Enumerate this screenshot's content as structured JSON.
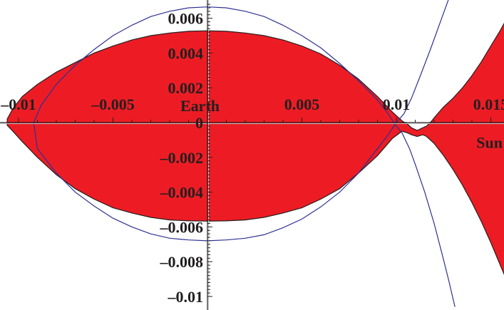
{
  "chart_data": {
    "type": "area",
    "title": "",
    "xlabel": "",
    "ylabel": "",
    "xlim": [
      -0.0106,
      0.0162
    ],
    "ylim": [
      -0.0107,
      0.007
    ],
    "grid": false,
    "x_ticks": [
      -0.01,
      -0.005,
      0.005,
      0.01,
      0.015
    ],
    "x_tick_labels": [
      "–0.01",
      "–0.005",
      "0.005",
      "0.01",
      "0.015"
    ],
    "y_ticks": [
      0.006,
      0.004,
      0.002,
      0,
      -0.002,
      -0.004,
      -0.006,
      -0.008,
      -0.01
    ],
    "y_tick_labels": [
      "0.006",
      "0.004",
      "0.002",
      "0",
      "–0.002",
      "–0.004",
      "–0.006",
      "–0.008",
      "–0.01"
    ],
    "annotations": [
      {
        "text": "Earth",
        "x": 0.0,
        "y": 0.0
      },
      {
        "text": "Sun",
        "x": 0.0162,
        "y": -0.0012
      }
    ],
    "colors": {
      "region_fill": "#ed1c24",
      "region_edge": "#231f20",
      "curve": "#2e3192",
      "axis": "#231f20",
      "axis_shadow": "#c8c8c8"
    },
    "series": [
      {
        "kind": "filled-region",
        "label_gap": 0.0001,
        "points": [
          [
            -0.0106,
            0.0002
          ],
          [
            -0.0103,
            0.0008
          ],
          [
            -0.0098,
            0.0015
          ],
          [
            -0.009,
            0.0022
          ],
          [
            -0.008,
            0.0029
          ],
          [
            -0.007,
            0.00345
          ],
          [
            -0.006,
            0.004
          ],
          [
            -0.005,
            0.0044
          ],
          [
            -0.004,
            0.00475
          ],
          [
            -0.003,
            0.005
          ],
          [
            -0.002,
            0.00515
          ],
          [
            -0.001,
            0.00525
          ],
          [
            0.0,
            0.00528
          ],
          [
            0.001,
            0.00525
          ],
          [
            0.002,
            0.00515
          ],
          [
            0.003,
            0.005
          ],
          [
            0.004,
            0.00475
          ],
          [
            0.005,
            0.0044
          ],
          [
            0.006,
            0.00395
          ],
          [
            0.007,
            0.0033
          ],
          [
            0.008,
            0.0025
          ],
          [
            0.009,
            0.0015
          ],
          [
            0.0098,
            0.0006
          ],
          [
            0.0103,
            0.0001
          ],
          [
            0.0106,
            -0.0001
          ],
          [
            0.0108,
            -0.0003
          ],
          [
            0.0111,
            -0.00045
          ],
          [
            0.0114,
            -0.0003
          ],
          [
            0.0116,
            -0.0002
          ],
          [
            0.0118,
            0.0
          ],
          [
            0.0121,
            0.0004
          ],
          [
            0.0125,
            0.0009
          ],
          [
            0.013,
            0.0014
          ],
          [
            0.0135,
            0.002
          ],
          [
            0.014,
            0.0027
          ],
          [
            0.0145,
            0.0035
          ],
          [
            0.015,
            0.0044
          ],
          [
            0.0155,
            0.0053
          ],
          [
            0.016,
            0.0063
          ],
          [
            0.0162,
            0.00675
          ],
          [
            0.0162,
            -0.01
          ],
          [
            0.0155,
            -0.0082
          ],
          [
            0.015,
            -0.0069
          ],
          [
            0.0145,
            -0.0057
          ],
          [
            0.014,
            -0.0046
          ],
          [
            0.0135,
            -0.0036
          ],
          [
            0.013,
            -0.0027
          ],
          [
            0.0125,
            -0.0019
          ],
          [
            0.012,
            -0.0012
          ],
          [
            0.0116,
            -0.0008
          ],
          [
            0.0114,
            -0.0007
          ],
          [
            0.0111,
            -0.0008
          ],
          [
            0.0108,
            -0.0007
          ],
          [
            0.0106,
            -0.0006
          ],
          [
            0.0103,
            -0.0005
          ],
          [
            0.0098,
            -0.0009
          ],
          [
            0.009,
            -0.0019
          ],
          [
            0.008,
            -0.0029
          ],
          [
            0.007,
            -0.0038
          ],
          [
            0.006,
            -0.0044
          ],
          [
            0.005,
            -0.0049
          ],
          [
            0.004,
            -0.0052
          ],
          [
            0.003,
            -0.00545
          ],
          [
            0.002,
            -0.0056
          ],
          [
            0.001,
            -0.00565
          ],
          [
            0.0,
            -0.00567
          ],
          [
            -0.001,
            -0.00565
          ],
          [
            -0.002,
            -0.0056
          ],
          [
            -0.003,
            -0.00545
          ],
          [
            -0.004,
            -0.0052
          ],
          [
            -0.005,
            -0.0049
          ],
          [
            -0.006,
            -0.0044
          ],
          [
            -0.007,
            -0.0038
          ],
          [
            -0.008,
            -0.003
          ],
          [
            -0.009,
            -0.002
          ],
          [
            -0.0098,
            -0.0011
          ],
          [
            -0.0103,
            -0.0005
          ],
          [
            -0.0106,
            -0.00015
          ]
        ]
      },
      {
        "kind": "curve",
        "points": [
          [
            0.0,
            0.00665
          ],
          [
            0.001,
            0.0066
          ],
          [
            0.002,
            0.0064
          ],
          [
            0.003,
            0.0061
          ],
          [
            0.004,
            0.0056
          ],
          [
            0.005,
            0.005
          ],
          [
            0.006,
            0.0043
          ],
          [
            0.007,
            0.0034
          ],
          [
            0.008,
            0.0024
          ],
          [
            0.009,
            0.0013
          ],
          [
            0.0095,
            0.0006
          ],
          [
            0.01,
            -0.0002
          ],
          [
            0.0103,
            -0.0006
          ],
          [
            0.0107,
            -0.0015
          ],
          [
            0.011,
            -0.0024
          ],
          [
            0.0115,
            -0.004
          ],
          [
            0.012,
            -0.0058
          ],
          [
            0.0125,
            -0.0079
          ],
          [
            0.0128,
            -0.0092
          ],
          [
            0.0131,
            -0.0106
          ]
        ]
      },
      {
        "kind": "curve",
        "points": [
          [
            0.0,
            0.00665
          ],
          [
            -0.001,
            0.0066
          ],
          [
            -0.002,
            0.0064
          ],
          [
            -0.003,
            0.0061
          ],
          [
            -0.004,
            0.0056
          ],
          [
            -0.005,
            0.005
          ],
          [
            -0.006,
            0.0042
          ],
          [
            -0.007,
            0.0033
          ],
          [
            -0.008,
            0.0022
          ],
          [
            -0.0088,
            0.001
          ],
          [
            -0.0092,
            0.0
          ],
          [
            -0.009,
            -0.0015
          ],
          [
            -0.008,
            -0.0029
          ],
          [
            -0.007,
            -0.004
          ],
          [
            -0.006,
            -0.0048
          ],
          [
            -0.005,
            -0.0055
          ],
          [
            -0.004,
            -0.006
          ],
          [
            -0.003,
            -0.0064
          ],
          [
            -0.002,
            -0.00665
          ],
          [
            -0.001,
            -0.00675
          ],
          [
            0.0,
            -0.0068
          ],
          [
            0.001,
            -0.00675
          ],
          [
            0.002,
            -0.00665
          ],
          [
            0.003,
            -0.00645
          ],
          [
            0.004,
            -0.00605
          ],
          [
            0.005,
            -0.00555
          ],
          [
            0.006,
            -0.00485
          ],
          [
            0.007,
            -0.004
          ],
          [
            0.008,
            -0.0029
          ],
          [
            0.009,
            -0.0015
          ],
          [
            0.0095,
            -0.0008
          ],
          [
            0.01,
            0.0
          ],
          [
            0.0104,
            0.0005
          ],
          [
            0.0108,
            0.0014
          ],
          [
            0.0112,
            0.0025
          ],
          [
            0.0118,
            0.0042
          ],
          [
            0.0124,
            0.006
          ],
          [
            0.0128,
            0.0072
          ]
        ]
      }
    ]
  }
}
